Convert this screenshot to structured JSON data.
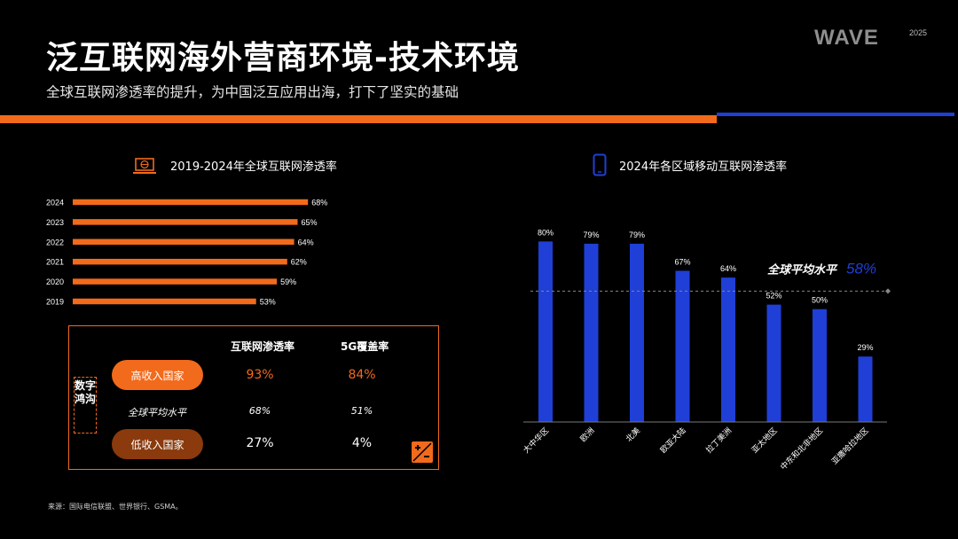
{
  "header": {
    "title": "泛互联网海外营商环境-技术环境",
    "subtitle": "全球互联网渗透率的提升，为中国泛互应用出海，打下了坚实的基础",
    "logo_text": "WAVE",
    "logo_year": "2025"
  },
  "colors": {
    "orange": "#f26a1b",
    "blue": "#1f3fd6",
    "dark_orange": "#8a3a0c",
    "background": "#000000"
  },
  "left_section": {
    "title": "2019-2024年全球互联网渗透率",
    "icon": "laptop-globe-icon"
  },
  "right_section": {
    "title": "2024年各区域移动互联网渗透率",
    "icon": "smartphone-icon"
  },
  "chart_data": [
    {
      "type": "bar",
      "orientation": "horizontal",
      "categories": [
        "2024",
        "2023",
        "2022",
        "2021",
        "2020",
        "2019"
      ],
      "values": [
        68,
        65,
        64,
        62,
        59,
        53
      ],
      "value_labels": [
        "68%",
        "65%",
        "64%",
        "62%",
        "59%",
        "53%"
      ],
      "color": "#f26a1b",
      "xlim": [
        0,
        100
      ],
      "grid": false
    },
    {
      "type": "bar",
      "orientation": "vertical",
      "categories": [
        "大中华区",
        "欧洲",
        "北美",
        "欧亚大陆",
        "拉丁美洲",
        "亚太地区",
        "中东和北非地区",
        "亚撒哈拉地区"
      ],
      "values": [
        80,
        79,
        79,
        67,
        64,
        52,
        50,
        29
      ],
      "value_labels": [
        "80%",
        "79%",
        "79%",
        "67%",
        "64%",
        "52%",
        "50%",
        "29%"
      ],
      "color": "#1f3fd6",
      "ylim": [
        0,
        88
      ],
      "grid": false,
      "reference_line": {
        "value": 58,
        "label": "全球平均水平",
        "value_label": "58%"
      }
    }
  ],
  "table": {
    "headers": [
      "互联网渗透率",
      "5G覆盖率"
    ],
    "side_label": "数字鸿沟",
    "rows": [
      {
        "label": "高收入国家",
        "internet": "93%",
        "5g": "84%"
      },
      {
        "label": "全球平均水平",
        "internet": "68%",
        "5g": "51%"
      },
      {
        "label": "低收入国家",
        "internet": "27%",
        "5g": "4%"
      }
    ],
    "corner_icon": "plus-minus-icon"
  },
  "footer": {
    "source": "来源：国际电信联盟、世界银行、GSMA。"
  }
}
